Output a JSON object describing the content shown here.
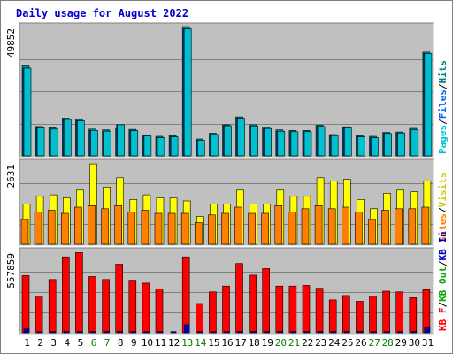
{
  "chart_data": {
    "type": "bar",
    "title": "Daily usage for August 2022",
    "categories": [
      "1",
      "2",
      "3",
      "4",
      "5",
      "6",
      "7",
      "8",
      "9",
      "10",
      "11",
      "12",
      "13",
      "14",
      "15",
      "16",
      "17",
      "18",
      "19",
      "20",
      "21",
      "22",
      "23",
      "24",
      "25",
      "26",
      "27",
      "28",
      "29",
      "30",
      "31"
    ],
    "weekend_days": [
      "6",
      "7",
      "13",
      "14",
      "20",
      "21",
      "27",
      "28"
    ],
    "colors": {
      "background": "#ffffff",
      "panel": "#c0c0c0",
      "grid": "#808080",
      "hits": "#00c0d0",
      "files": "#0066ff",
      "pages": "#00c0d0",
      "visits": "#ffff00",
      "sites": "#ff8000",
      "kb_in": "#0000cc",
      "kb_out": "#00aa00",
      "kb_f": "#ff0000",
      "title": "#0000cc",
      "weekend_label": "#008000",
      "weekday_label": "#000000"
    },
    "panels": [
      {
        "id": "hits",
        "max_label": "49852",
        "ymax": 49852,
        "right_labels": [
          {
            "text": "Pages",
            "color": "#00c0d0"
          },
          {
            "text": "/",
            "color": "#000000"
          },
          {
            "text": "Files",
            "color": "#0066ff"
          },
          {
            "text": "/",
            "color": "#000000"
          },
          {
            "text": "Hits",
            "color": "#008080"
          }
        ],
        "series": [
          {
            "name": "Hits",
            "color": "#009090",
            "values": [
              34800,
              11300,
              10800,
              14500,
              14000,
              10300,
              10000,
              10500,
              10200,
              8000,
              7500,
              7800,
              49852,
              6500,
              8700,
              12000,
              15000,
              12000,
              11000,
              10000,
              9800,
              9800,
              11800,
              8200,
              11200,
              7800,
              7500,
              9000,
              9200,
              10600,
              40000
            ]
          },
          {
            "name": "Files",
            "color": "#0066ff",
            "values": [
              33800,
              10800,
              10300,
              14000,
              13500,
              9800,
              9500,
              12000,
              9700,
              7600,
              7000,
              7300,
              49000,
              6000,
              8200,
              11600,
              14500,
              11500,
              10500,
              9500,
              9300,
              9300,
              11300,
              7800,
              10800,
              7300,
              7000,
              8600,
              8800,
              10100,
              39500
            ]
          },
          {
            "name": "Pages",
            "color": "#00c0d0",
            "values": [
              33800,
              10800,
              10300,
              14000,
              13500,
              9800,
              9500,
              12000,
              9700,
              7600,
              7000,
              7300,
              49000,
              6000,
              8200,
              11600,
              14500,
              11500,
              10500,
              9500,
              9300,
              9300,
              11300,
              7800,
              10800,
              7300,
              7000,
              8600,
              8800,
              10100,
              39500
            ]
          }
        ]
      },
      {
        "id": "visits",
        "max_label": "2631",
        "ymax": 2631,
        "right_labels": [
          {
            "text": "Sites",
            "color": "#ff8000"
          },
          {
            "text": "/",
            "color": "#000000"
          },
          {
            "text": "Visits",
            "color": "#cccc00"
          }
        ],
        "series": [
          {
            "name": "Visits",
            "color": "#ffff00",
            "values": [
              1300,
              1550,
              1600,
              1500,
              1750,
              2600,
              1850,
              2150,
              1450,
              1600,
              1500,
              1500,
              1400,
              900,
              1300,
              1300,
              1750,
              1300,
              1300,
              1750,
              1550,
              1550,
              2150,
              2050,
              2100,
              1450,
              1150,
              1650,
              1750,
              1700,
              2050
            ]
          },
          {
            "name": "Sites",
            "color": "#ff8000",
            "values": [
              800,
              1050,
              1100,
              1000,
              1200,
              1250,
              1150,
              1250,
              1050,
              1100,
              1000,
              1000,
              1000,
              700,
              950,
              1000,
              1200,
              1000,
              1000,
              1250,
              1050,
              1150,
              1250,
              1150,
              1200,
              1050,
              800,
              1100,
              1150,
              1150,
              1200
            ]
          }
        ]
      },
      {
        "id": "kbytes",
        "max_label": "557859",
        "ymax": 557859,
        "right_labels": [
          {
            "text": "KB F",
            "color": "#ff0000"
          },
          {
            "text": "/",
            "color": "#000000"
          },
          {
            "text": "KB Out",
            "color": "#00aa00"
          },
          {
            "text": "/",
            "color": "#000000"
          },
          {
            "text": "KB In",
            "color": "#0000cc"
          }
        ],
        "series": [
          {
            "name": "KB F",
            "color": "#ff0000",
            "values": [
              392000,
              245000,
              365000,
              520000,
              550000,
              385000,
              365000,
              470000,
              360000,
              340000,
              300000,
              0,
              520000,
              200000,
              280000,
              320000,
              475000,
              395000,
              440000,
              320000,
              320000,
              325000,
              305000,
              225000,
              255000,
              215000,
              250000,
              285000,
              280000,
              240000,
              295000
            ]
          },
          {
            "name": "KB In",
            "color": "#0000cc",
            "values": [
              26000,
              8000,
              8000,
              9000,
              9000,
              9000,
              9000,
              9000,
              9000,
              8000,
              8000,
              8000,
              55000,
              8000,
              8000,
              8000,
              9000,
              9000,
              9000,
              9000,
              9000,
              9000,
              9000,
              9000,
              9000,
              9000,
              8000,
              8000,
              8000,
              9000,
              35000
            ]
          }
        ]
      }
    ]
  }
}
